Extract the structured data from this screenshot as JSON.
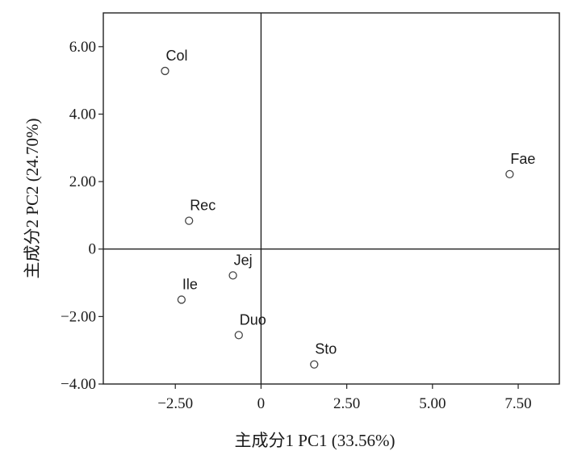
{
  "chart_data": {
    "type": "scatter",
    "title": "",
    "xlabel": "主成分1 PC1 (33.56%)",
    "ylabel": "主成分2 PC2 (24.70%)",
    "xlim": [
      -4.6,
      8.7
    ],
    "ylim": [
      -4.0,
      7.0
    ],
    "grid": false,
    "reference_lines": {
      "x": 0,
      "y": 0
    },
    "x_ticks": [
      -2.5,
      0,
      2.5,
      5.0,
      7.5
    ],
    "x_tick_labels": [
      "−2.50",
      "0",
      "2.50",
      "5.00",
      "7.50"
    ],
    "y_ticks": [
      -4.0,
      -2.0,
      0,
      2.0,
      4.0,
      6.0
    ],
    "y_tick_labels": [
      "−4.00",
      "−2.00",
      "0",
      "2.00",
      "4.00",
      "6.00"
    ],
    "points": [
      {
        "label": "Col",
        "x": -2.8,
        "y": 5.28
      },
      {
        "label": "Rec",
        "x": -2.1,
        "y": 0.84
      },
      {
        "label": "Jej",
        "x": -0.82,
        "y": -0.78
      },
      {
        "label": "Ile",
        "x": -2.32,
        "y": -1.5
      },
      {
        "label": "Duo",
        "x": -0.65,
        "y": -2.55
      },
      {
        "label": "Sto",
        "x": 1.55,
        "y": -3.42
      },
      {
        "label": "Fae",
        "x": 7.25,
        "y": 2.22
      }
    ],
    "marker": "open-circle"
  }
}
